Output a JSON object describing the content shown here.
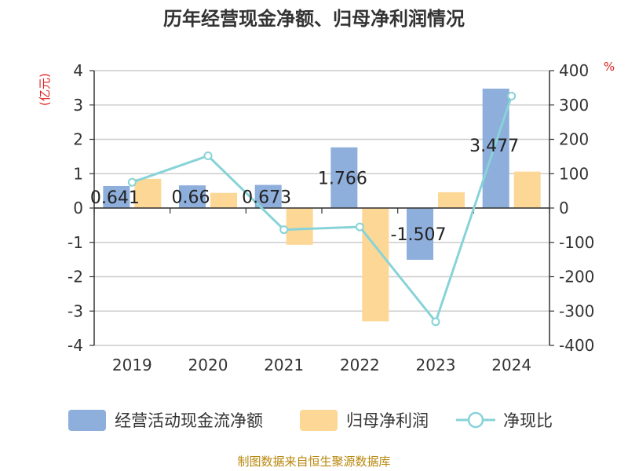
{
  "chart_data": {
    "type": "bar",
    "title": "历年经营现金净额、归母净利润情况",
    "categories": [
      "2019",
      "2020",
      "2021",
      "2022",
      "2023",
      "2024"
    ],
    "series": [
      {
        "name": "经营活动现金流净额",
        "type": "bar",
        "axis": "left",
        "color": "#8eaedb",
        "values": [
          0.641,
          0.66,
          0.673,
          1.766,
          -1.507,
          3.477
        ]
      },
      {
        "name": "归母净利润",
        "type": "bar",
        "axis": "left",
        "color": "#fdd796",
        "values": [
          0.85,
          0.44,
          -1.07,
          -3.3,
          0.46,
          1.06
        ]
      },
      {
        "name": "净现比",
        "type": "line",
        "axis": "right",
        "color": "#88d3d8",
        "values": [
          75,
          152,
          -63,
          -55,
          -331,
          326
        ]
      }
    ],
    "data_labels": [
      "0.641",
      "0.66",
      "0.673",
      "1.766",
      "-1.507",
      "3.477"
    ],
    "y_left": {
      "unit": "(亿元)",
      "range": [
        -4,
        4
      ],
      "ticks": [
        "4",
        "3",
        "2",
        "1",
        "0",
        "-1",
        "-2",
        "-3",
        "-4"
      ]
    },
    "y_right": {
      "unit": "%",
      "range": [
        -400,
        400
      ],
      "ticks": [
        "400",
        "300",
        "200",
        "100",
        "0",
        "-100",
        "-200",
        "-300",
        "-400"
      ]
    },
    "legend_position": "bottom",
    "grid": true
  },
  "source": "制图数据来自恒生聚源数据库"
}
